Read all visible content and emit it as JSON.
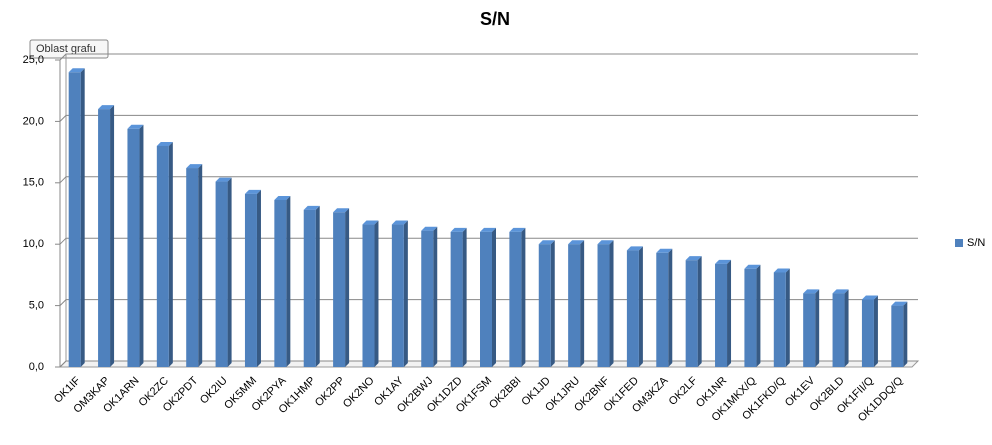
{
  "tooltip": "Oblast grafu",
  "chart_data": {
    "type": "bar",
    "title": "S/N",
    "categories": [
      "OK1IF",
      "OM3KAP",
      "OK1ARN",
      "OK2ZC",
      "OK2PDT",
      "OK2IU",
      "OK5MM",
      "OK2PYA",
      "OK1HMP",
      "OK2PP",
      "OK2NO",
      "OK1AY",
      "OK2BWJ",
      "OK1DZD",
      "OK1FSM",
      "OK2BBI",
      "OK1JD",
      "OK1JRU",
      "OK2BNF",
      "OK1FED",
      "OM3KZA",
      "OK2LF",
      "OK1NR",
      "OK1MKX/Q",
      "OK1FKD/Q",
      "OK1EV",
      "OK2BLD",
      "OK1FII/Q",
      "OK1DDQ/Q"
    ],
    "series": [
      {
        "name": "S/N",
        "color": "#4f81bd",
        "values": [
          24,
          21,
          19.4,
          18,
          16.2,
          15.1,
          14.1,
          13.6,
          12.8,
          12.6,
          11.6,
          11.6,
          11.1,
          11,
          11,
          11,
          10,
          10,
          10,
          9.5,
          9.3,
          8.7,
          8.4,
          8,
          7.7,
          6,
          6,
          5.5,
          5
        ]
      }
    ],
    "ylim": [
      0,
      25
    ],
    "yticks": [
      {
        "value": 0,
        "label": "0,0"
      },
      {
        "value": 5,
        "label": "5,0"
      },
      {
        "value": 10,
        "label": "10,0"
      },
      {
        "value": 15,
        "label": "15,0"
      },
      {
        "value": 20,
        "label": "20,0"
      },
      {
        "value": 25,
        "label": "25,0"
      }
    ],
    "grid": true,
    "legend": "right"
  }
}
